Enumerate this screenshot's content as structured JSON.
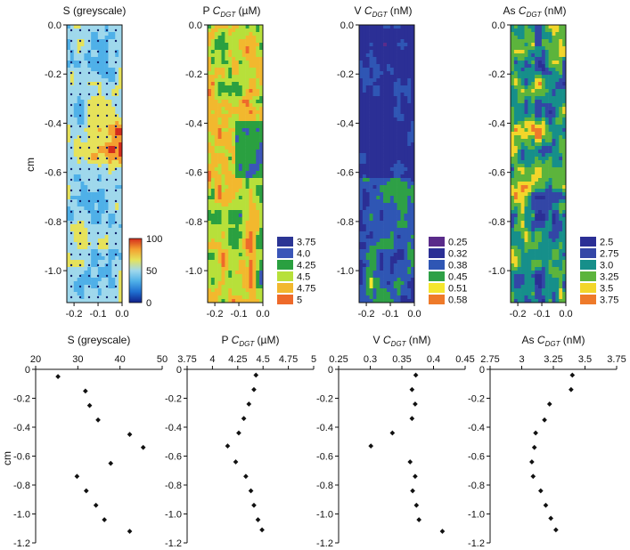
{
  "figure": {
    "yaxis_label": "cm"
  },
  "chart_data": [
    {
      "type": "heatmap",
      "title": "S (greyscale)",
      "ylim": [
        -1.13,
        0
      ],
      "xlim": [
        -0.23,
        0
      ],
      "y_ticks": [
        "0.0",
        "-0.2",
        "-0.4",
        "-0.6",
        "-0.8",
        "-1.0"
      ],
      "x_ticks": [
        "-0.2",
        "-0.1",
        "0.0"
      ],
      "colorbar": {
        "type": "continuous",
        "ticks": [
          "100",
          "50",
          "0"
        ],
        "range": [
          0,
          100
        ]
      },
      "palette": [
        "#10208a",
        "#1f6fd0",
        "#4fb0e8",
        "#9fd8ec",
        "#e6e25a",
        "#f4a030",
        "#d42b1c"
      ]
    },
    {
      "type": "heatmap",
      "title_prefix": "P ",
      "title_sym": "C",
      "title_sub": "DGT",
      "title_suffix": " (µM)",
      "ylim": [
        -1.13,
        0
      ],
      "xlim": [
        -0.23,
        0
      ],
      "y_ticks": [
        "0.0",
        "-0.2",
        "-0.4",
        "-0.6",
        "-0.8",
        "-1.0"
      ],
      "x_ticks": [
        "-0.2",
        "-0.1",
        "0.0"
      ],
      "legend": [
        {
          "label": "3.75",
          "color": "#2b3594"
        },
        {
          "label": "4.0",
          "color": "#3a56b8"
        },
        {
          "label": "4.25",
          "color": "#2aa040"
        },
        {
          "label": "4.5",
          "color": "#b7e03a"
        },
        {
          "label": "4.75",
          "color": "#f2b82e"
        },
        {
          "label": "5",
          "color": "#ee6a2a"
        }
      ]
    },
    {
      "type": "heatmap",
      "title_prefix": "V ",
      "title_sym": "C",
      "title_sub": "DGT",
      "title_suffix": " (nM)",
      "ylim": [
        -1.13,
        0
      ],
      "xlim": [
        -0.23,
        0
      ],
      "y_ticks": [
        "0.0",
        "-0.2",
        "-0.4",
        "-0.6",
        "-0.8",
        "-1.0"
      ],
      "x_ticks": [
        "-0.2",
        "-0.1",
        "0.0"
      ],
      "legend": [
        {
          "label": "0.25",
          "color": "#5a2b8a"
        },
        {
          "label": "0.32",
          "color": "#2b2f95"
        },
        {
          "label": "0.38",
          "color": "#2f56b4"
        },
        {
          "label": "0.45",
          "color": "#2ea046"
        },
        {
          "label": "0.51",
          "color": "#f4e62e"
        },
        {
          "label": "0.58",
          "color": "#ee7a2a"
        }
      ]
    },
    {
      "type": "heatmap",
      "title_prefix": "As ",
      "title_sym": "C",
      "title_sub": "DGT",
      "title_suffix": " (nM)",
      "ylim": [
        -1.13,
        0
      ],
      "xlim": [
        -0.23,
        0
      ],
      "y_ticks": [
        "0.0",
        "-0.2",
        "-0.4",
        "-0.6",
        "-0.8",
        "-1.0"
      ],
      "x_ticks": [
        "-0.2",
        "-0.1",
        "0.0"
      ],
      "legend": [
        {
          "label": "2.5",
          "color": "#2b2f95"
        },
        {
          "label": "2.75",
          "color": "#3346a6"
        },
        {
          "label": "3.0",
          "color": "#168f8a"
        },
        {
          "label": "3.25",
          "color": "#5cb43c"
        },
        {
          "label": "3.5",
          "color": "#f2d62a"
        },
        {
          "label": "3.75",
          "color": "#ee7a2a"
        }
      ]
    },
    {
      "type": "scatter",
      "title": "S (greyscale)",
      "xlim": [
        20,
        50
      ],
      "ylim": [
        -1.2,
        0
      ],
      "x_ticks": [
        "20",
        "30",
        "40",
        "50"
      ],
      "y_ticks": [
        "0",
        "-0.2",
        "-0.4",
        "-0.6",
        "-0.8",
        "-1.0",
        "-1.2"
      ],
      "points": [
        [
          25.3,
          -0.05
        ],
        [
          31.8,
          -0.15
        ],
        [
          32.8,
          -0.25
        ],
        [
          34.8,
          -0.35
        ],
        [
          42.3,
          -0.45
        ],
        [
          45.5,
          -0.54
        ],
        [
          37.8,
          -0.65
        ],
        [
          29.8,
          -0.74
        ],
        [
          32.0,
          -0.84
        ],
        [
          34.3,
          -0.94
        ],
        [
          36.3,
          -1.04
        ],
        [
          42.3,
          -1.12
        ]
      ]
    },
    {
      "type": "scatter",
      "title_prefix": "P ",
      "title_sym": "C",
      "title_sub": "DGT",
      "title_suffix": " (µM)",
      "xlim": [
        3.75,
        5
      ],
      "ylim": [
        -1.2,
        0
      ],
      "x_ticks": [
        "3.75",
        "4",
        "4.25",
        "4.5",
        "4.75",
        "5"
      ],
      "y_ticks": [
        "0",
        "-0.2",
        "-0.4",
        "-0.6",
        "-0.8",
        "-1.0",
        "-1.2"
      ],
      "points": [
        [
          4.43,
          -0.04
        ],
        [
          4.41,
          -0.14
        ],
        [
          4.36,
          -0.24
        ],
        [
          4.31,
          -0.34
        ],
        [
          4.26,
          -0.44
        ],
        [
          4.15,
          -0.53
        ],
        [
          4.23,
          -0.64
        ],
        [
          4.33,
          -0.74
        ],
        [
          4.38,
          -0.84
        ],
        [
          4.41,
          -0.94
        ],
        [
          4.45,
          -1.04
        ],
        [
          4.49,
          -1.11
        ]
      ]
    },
    {
      "type": "scatter",
      "title_prefix": "V ",
      "title_sym": "C",
      "title_sub": "DGT",
      "title_suffix": " (nM)",
      "xlim": [
        0.25,
        0.45
      ],
      "ylim": [
        -1.2,
        0
      ],
      "x_ticks": [
        "0.25",
        "0.3",
        "0.35",
        "0.4",
        "0.45"
      ],
      "y_ticks": [
        "0",
        "-0.2",
        "-0.4",
        "-0.6",
        "-0.8",
        "-1.0",
        "-1.2"
      ],
      "points": [
        [
          0.372,
          -0.04
        ],
        [
          0.366,
          -0.14
        ],
        [
          0.371,
          -0.24
        ],
        [
          0.366,
          -0.34
        ],
        [
          0.335,
          -0.44
        ],
        [
          0.301,
          -0.53
        ],
        [
          0.363,
          -0.64
        ],
        [
          0.371,
          -0.74
        ],
        [
          0.367,
          -0.84
        ],
        [
          0.373,
          -0.94
        ],
        [
          0.377,
          -1.04
        ],
        [
          0.414,
          -1.12
        ]
      ]
    },
    {
      "type": "scatter",
      "title_prefix": "As ",
      "title_sym": "C",
      "title_sub": "DGT",
      "title_suffix": " (nM)",
      "xlim": [
        2.75,
        3.75
      ],
      "ylim": [
        -1.2,
        0
      ],
      "x_ticks": [
        "2.75",
        "3",
        "3.25",
        "3.5",
        "3.75"
      ],
      "y_ticks": [
        "0",
        "-0.2",
        "-0.4",
        "-0.6",
        "-0.8",
        "-1.0",
        "-1.2"
      ],
      "points": [
        [
          3.4,
          -0.04
        ],
        [
          3.39,
          -0.14
        ],
        [
          3.22,
          -0.24
        ],
        [
          3.18,
          -0.35
        ],
        [
          3.11,
          -0.44
        ],
        [
          3.1,
          -0.54
        ],
        [
          3.08,
          -0.64
        ],
        [
          3.09,
          -0.74
        ],
        [
          3.15,
          -0.84
        ],
        [
          3.19,
          -0.94
        ],
        [
          3.23,
          -1.03
        ],
        [
          3.27,
          -1.11
        ]
      ]
    }
  ]
}
